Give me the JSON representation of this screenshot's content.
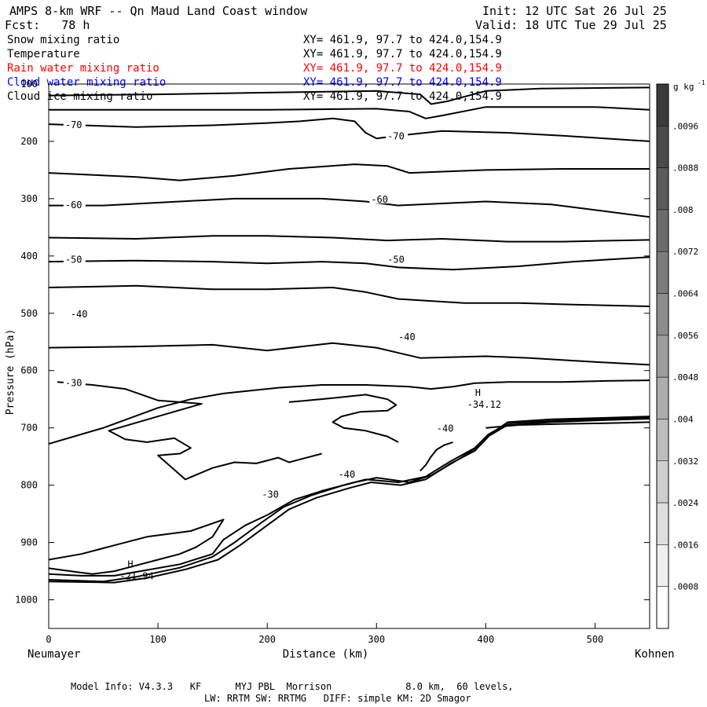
{
  "header": {
    "title": "AMPS 8-km WRF -- Qn Maud Land Coast window",
    "init": "Init: 12 UTC Sat 26 Jul 25",
    "fcst": "Fcst:   78 h",
    "valid": "Valid: 18 UTC Tue 29 Jul 25"
  },
  "fields": [
    {
      "name": "Snow mixing ratio",
      "xy": "XY= 461.9, 97.7 to 424.0,154.9",
      "color": "#000000"
    },
    {
      "name": "Temperature",
      "xy": "XY= 461.9, 97.7 to 424.0,154.9",
      "color": "#000000"
    },
    {
      "name": "Rain water mixing ratio",
      "xy": "XY= 461.9, 97.7 to 424.0,154.9",
      "color": "#ff0000"
    },
    {
      "name": "Cloud water mixing ratio",
      "xy": "XY= 461.9, 97.7 to 424.0,154.9",
      "color": "#0000ff"
    },
    {
      "name": "Cloud ice mixing ratio",
      "xy": "XY= 461.9, 97.7 to 424.0,154.9",
      "color": "#000000"
    }
  ],
  "footer": {
    "line1": "Model Info: V4.3.3   KF      MYJ PBL  Morrison             8.0 km,  60 levels,",
    "line2": "LW: RRTM SW: RRTMG   DIFF: simple KM: 2D Smagor"
  },
  "chart_data": {
    "type": "line",
    "subtype": "vertical cross-section contour",
    "xlabel": "Distance (km)",
    "ylabel": "Pressure (hPa)",
    "xlim": [
      0,
      550
    ],
    "ylim": [
      1050,
      100
    ],
    "x_ticks": [
      "0",
      "100",
      "200",
      "300",
      "400",
      "500"
    ],
    "y_ticks": [
      "100",
      "200",
      "300",
      "400",
      "500",
      "600",
      "700",
      "800",
      "900",
      "1000"
    ],
    "x_start_label": "Neumayer",
    "x_end_label": "Kohnen",
    "colorbar": {
      "unit": "g kg",
      "unit_exp": "-1",
      "labels": [
        ".0096",
        ".0088",
        ".008",
        ".0072",
        ".0064",
        ".0056",
        ".0048",
        ".004",
        ".0032",
        ".0024",
        ".0016",
        ".0008"
      ]
    },
    "contour_labels": [
      {
        "text": "-70",
        "x": 15,
        "p": 170
      },
      {
        "text": "-70",
        "x": 310,
        "p": 190
      },
      {
        "text": "-60",
        "x": 15,
        "p": 310
      },
      {
        "text": "-60",
        "x": 295,
        "p": 300
      },
      {
        "text": "-50",
        "x": 15,
        "p": 405
      },
      {
        "text": "-50",
        "x": 310,
        "p": 405
      },
      {
        "text": "-40",
        "x": 20,
        "p": 500
      },
      {
        "text": "-40",
        "x": 320,
        "p": 540
      },
      {
        "text": "-30",
        "x": 15,
        "p": 620
      },
      {
        "text": "-40",
        "x": 355,
        "p": 700
      },
      {
        "text": "-40",
        "x": 265,
        "p": 780
      },
      {
        "text": "-30",
        "x": 195,
        "p": 815
      }
    ],
    "extrema": [
      {
        "marker": "H",
        "value": "-34.12",
        "x": 383,
        "p": 655
      },
      {
        "marker": "H",
        "value": "-21.94",
        "x": 65,
        "p": 955
      }
    ],
    "series": [
      {
        "level": -75,
        "points": [
          [
            0,
            120
          ],
          [
            100,
            118
          ],
          [
            200,
            115
          ],
          [
            300,
            112
          ],
          [
            340,
            118
          ],
          [
            350,
            135
          ],
          [
            365,
            130
          ],
          [
            400,
            112
          ],
          [
            450,
            108
          ],
          [
            550,
            106
          ]
        ]
      },
      {
        "level": -72,
        "points": [
          [
            0,
            145
          ],
          [
            100,
            145
          ],
          [
            200,
            145
          ],
          [
            300,
            143
          ],
          [
            330,
            148
          ],
          [
            345,
            160
          ],
          [
            360,
            155
          ],
          [
            400,
            140
          ],
          [
            500,
            140
          ],
          [
            550,
            145
          ]
        ]
      },
      {
        "level": -70,
        "points": [
          [
            0,
            170
          ],
          [
            80,
            175
          ],
          [
            150,
            172
          ],
          [
            200,
            168
          ],
          [
            230,
            165
          ],
          [
            260,
            160
          ],
          [
            280,
            165
          ],
          [
            290,
            185
          ],
          [
            300,
            195
          ],
          [
            320,
            190
          ],
          [
            360,
            182
          ],
          [
            420,
            185
          ],
          [
            470,
            190
          ],
          [
            550,
            200
          ]
        ]
      },
      {
        "level": -65,
        "points": [
          [
            0,
            255
          ],
          [
            80,
            262
          ],
          [
            120,
            268
          ],
          [
            170,
            260
          ],
          [
            220,
            248
          ],
          [
            280,
            240
          ],
          [
            310,
            243
          ],
          [
            330,
            255
          ],
          [
            400,
            250
          ],
          [
            470,
            248
          ],
          [
            550,
            248
          ]
        ]
      },
      {
        "level": -60,
        "points": [
          [
            0,
            312
          ],
          [
            50,
            312
          ],
          [
            120,
            305
          ],
          [
            170,
            300
          ],
          [
            250,
            300
          ],
          [
            290,
            305
          ],
          [
            320,
            312
          ],
          [
            400,
            305
          ],
          [
            460,
            310
          ],
          [
            550,
            332
          ]
        ]
      },
      {
        "level": -55,
        "points": [
          [
            0,
            368
          ],
          [
            80,
            370
          ],
          [
            150,
            365
          ],
          [
            200,
            365
          ],
          [
            260,
            368
          ],
          [
            310,
            373
          ],
          [
            360,
            370
          ],
          [
            420,
            375
          ],
          [
            470,
            375
          ],
          [
            550,
            372
          ]
        ]
      },
      {
        "level": -50,
        "points": [
          [
            0,
            410
          ],
          [
            80,
            408
          ],
          [
            150,
            410
          ],
          [
            200,
            413
          ],
          [
            250,
            410
          ],
          [
            290,
            413
          ],
          [
            320,
            420
          ],
          [
            370,
            424
          ],
          [
            430,
            418
          ],
          [
            480,
            410
          ],
          [
            550,
            402
          ]
        ]
      },
      {
        "level": -45,
        "points": [
          [
            0,
            455
          ],
          [
            80,
            452
          ],
          [
            150,
            458
          ],
          [
            200,
            458
          ],
          [
            260,
            455
          ],
          [
            290,
            463
          ],
          [
            320,
            475
          ],
          [
            380,
            482
          ],
          [
            430,
            482
          ],
          [
            480,
            485
          ],
          [
            550,
            488
          ]
        ]
      },
      {
        "level": -40,
        "points": [
          [
            0,
            560
          ],
          [
            80,
            558
          ],
          [
            150,
            555
          ],
          [
            200,
            565
          ],
          [
            260,
            552
          ],
          [
            300,
            560
          ],
          [
            340,
            578
          ],
          [
            400,
            575
          ],
          [
            440,
            578
          ],
          [
            500,
            585
          ],
          [
            550,
            590
          ]
        ]
      },
      {
        "level": -30,
        "closed": false,
        "points": [
          [
            0,
            728
          ],
          [
            50,
            700
          ],
          [
            100,
            665
          ],
          [
            130,
            650
          ],
          [
            160,
            640
          ],
          [
            210,
            630
          ],
          [
            250,
            625
          ],
          [
            290,
            625
          ],
          [
            330,
            628
          ],
          [
            350,
            632
          ],
          [
            370,
            628
          ],
          [
            390,
            622
          ],
          [
            420,
            620
          ],
          [
            470,
            620
          ],
          [
            510,
            618
          ],
          [
            550,
            617
          ]
        ]
      },
      {
        "level": -30,
        "closed": false,
        "points": [
          [
            8,
            620
          ],
          [
            40,
            625
          ],
          [
            70,
            632
          ],
          [
            100,
            652
          ],
          [
            140,
            658
          ],
          [
            100,
            680
          ],
          [
            55,
            705
          ],
          [
            70,
            720
          ],
          [
            90,
            725
          ],
          [
            115,
            718
          ],
          [
            130,
            735
          ],
          [
            120,
            745
          ],
          [
            100,
            748
          ],
          [
            125,
            790
          ],
          [
            150,
            770
          ],
          [
            170,
            760
          ],
          [
            190,
            762
          ],
          [
            210,
            752
          ],
          [
            220,
            760
          ],
          [
            230,
            755
          ],
          [
            250,
            745
          ]
        ]
      },
      {
        "level": -30,
        "closed": false,
        "points": [
          [
            220,
            655
          ],
          [
            260,
            648
          ],
          [
            290,
            642
          ],
          [
            310,
            650
          ],
          [
            318,
            660
          ],
          [
            310,
            670
          ],
          [
            285,
            672
          ],
          [
            268,
            680
          ],
          [
            260,
            690
          ],
          [
            270,
            700
          ],
          [
            290,
            705
          ],
          [
            300,
            710
          ],
          [
            310,
            715
          ],
          [
            320,
            725
          ]
        ]
      },
      {
        "level": -30,
        "closed": false,
        "points": [
          [
            0,
            930
          ],
          [
            30,
            920
          ],
          [
            60,
            905
          ],
          [
            90,
            890
          ],
          [
            130,
            880
          ],
          [
            160,
            860
          ],
          [
            150,
            890
          ],
          [
            135,
            908
          ],
          [
            120,
            920
          ],
          [
            100,
            930
          ],
          [
            80,
            940
          ],
          [
            60,
            950
          ],
          [
            40,
            955
          ],
          [
            20,
            950
          ],
          [
            0,
            945
          ]
        ]
      },
      {
        "level": -34,
        "closed": false,
        "points": [
          [
            0,
            955
          ],
          [
            30,
            958
          ],
          [
            60,
            958
          ],
          [
            90,
            948
          ],
          [
            120,
            938
          ],
          [
            150,
            920
          ],
          [
            160,
            895
          ],
          [
            180,
            870
          ],
          [
            200,
            852
          ],
          [
            225,
            825
          ],
          [
            250,
            810
          ],
          [
            280,
            795
          ],
          [
            300,
            787
          ],
          [
            330,
            795
          ],
          [
            350,
            783
          ],
          [
            375,
            755
          ],
          [
            395,
            730
          ],
          [
            405,
            710
          ],
          [
            420,
            690
          ],
          [
            460,
            685
          ],
          [
            500,
            683
          ],
          [
            550,
            680
          ]
        ]
      },
      {
        "level": -38,
        "closed": false,
        "points": [
          [
            0,
            965
          ],
          [
            50,
            968
          ],
          [
            80,
            960
          ],
          [
            120,
            944
          ],
          [
            150,
            925
          ],
          [
            170,
            900
          ],
          [
            195,
            865
          ],
          [
            215,
            838
          ],
          [
            240,
            818
          ],
          [
            270,
            800
          ],
          [
            290,
            790
          ],
          [
            320,
            795
          ],
          [
            345,
            785
          ],
          [
            368,
            758
          ],
          [
            390,
            735
          ],
          [
            402,
            712
          ],
          [
            420,
            692
          ],
          [
            460,
            688
          ],
          [
            500,
            685
          ],
          [
            550,
            682
          ]
        ]
      },
      {
        "level": -40,
        "closed": false,
        "points": [
          [
            0,
            968
          ],
          [
            60,
            970
          ],
          [
            90,
            962
          ],
          [
            125,
            947
          ],
          [
            155,
            930
          ],
          [
            175,
            905
          ],
          [
            200,
            870
          ],
          [
            220,
            842
          ],
          [
            245,
            822
          ],
          [
            275,
            805
          ],
          [
            295,
            795
          ],
          [
            322,
            800
          ],
          [
            345,
            790
          ],
          [
            368,
            762
          ],
          [
            390,
            740
          ],
          [
            402,
            715
          ],
          [
            420,
            695
          ],
          [
            460,
            690
          ],
          [
            500,
            687
          ],
          [
            550,
            684
          ]
        ]
      },
      {
        "level": -42,
        "closed": false,
        "points": [
          [
            340,
            775
          ],
          [
            345,
            765
          ],
          [
            350,
            750
          ],
          [
            355,
            738
          ],
          [
            362,
            730
          ],
          [
            370,
            725
          ]
        ]
      },
      {
        "level": -44,
        "closed": false,
        "points": [
          [
            400,
            700
          ],
          [
            430,
            695
          ],
          [
            470,
            693
          ],
          [
            510,
            692
          ],
          [
            550,
            690
          ]
        ]
      }
    ]
  }
}
